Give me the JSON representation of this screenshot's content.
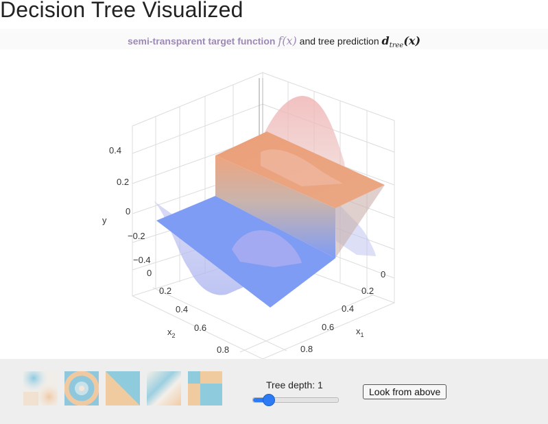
{
  "page": {
    "title": "Decision Tree Visualized"
  },
  "subtitle": {
    "part_a": "semi-transparent target function",
    "fx": "f(x)",
    "part_b": "and tree prediction",
    "d_base": "d",
    "d_sub": "tree",
    "d_arg": "(x)"
  },
  "plot": {
    "y_axis_label": "y",
    "x1_axis_label": "x",
    "x1_axis_sub": "1",
    "x2_axis_label": "x",
    "x2_axis_sub": "2",
    "y_ticks": [
      "0.4",
      "0.2",
      "0",
      "−0.2",
      "−0.4"
    ],
    "x1_ticks": [
      "0",
      "0.2",
      "0.4",
      "0.6",
      "0.8"
    ],
    "x2_ticks": [
      "0",
      "0.2",
      "0.4",
      "0.6",
      "0.8"
    ],
    "colors": {
      "high": "#eea57f",
      "low": "#7f9cf5",
      "grid": "#d8d8d8"
    }
  },
  "controls": {
    "presets": [
      {
        "name": "target-function-1"
      },
      {
        "name": "target-function-2"
      },
      {
        "name": "target-function-3"
      },
      {
        "name": "target-function-4"
      },
      {
        "name": "target-function-5"
      }
    ],
    "depth_label": "Tree depth: 1",
    "depth_value": 1,
    "look_button": "Look from above"
  }
}
